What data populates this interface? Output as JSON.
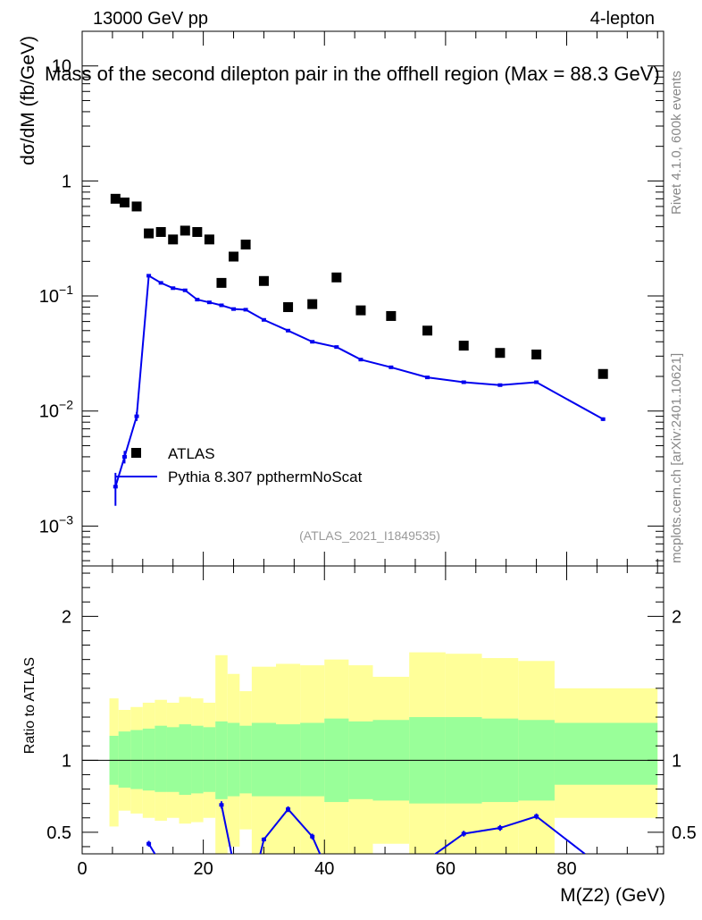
{
  "header": {
    "left": "13000 GeV pp",
    "right": "4-lepton",
    "side_top": "Rivet 4.1.0,  600k events",
    "side_bottom": "mcplots.cern.ch [arXiv:2401.10621]"
  },
  "chart_data": [
    {
      "type": "scatter",
      "title": "Mass of the second dilepton pair in the offhell region (Max = 88.3 GeV)",
      "ylabel": "dσ/dM (fb/GeV)",
      "xlabel": "",
      "yscale": "log",
      "xlim": [
        0,
        96
      ],
      "ylim": [
        0.00045,
        20
      ],
      "y_ticks": [
        {
          "value": 0.001,
          "base": "10",
          "exp": "−3"
        },
        {
          "value": 0.01,
          "base": "10",
          "exp": "−2"
        },
        {
          "value": 0.1,
          "base": "10",
          "exp": "−1"
        },
        {
          "value": 1,
          "base": "1",
          "exp": ""
        },
        {
          "value": 10,
          "base": "10",
          "exp": ""
        }
      ],
      "legend": {
        "position": "left",
        "entries": [
          "ATLAS",
          "Pythia 8.307 ppthermNoScat"
        ]
      },
      "watermark": "(ATLAS_2021_I1849535)",
      "series": [
        {
          "name": "ATLAS",
          "style": "markers",
          "color": "#000000",
          "x": [
            5.5,
            7,
            9,
            11,
            13,
            15,
            17,
            19,
            21,
            23,
            25,
            27,
            30,
            34,
            38,
            42,
            46,
            51,
            57,
            63,
            69,
            75,
            86
          ],
          "y": [
            0.7,
            0.65,
            0.6,
            0.35,
            0.36,
            0.31,
            0.37,
            0.36,
            0.31,
            0.13,
            0.22,
            0.28,
            0.135,
            0.08,
            0.085,
            0.145,
            0.075,
            0.067,
            0.05,
            0.037,
            0.032,
            0.031,
            0.021
          ]
        },
        {
          "name": "Pythia 8.307 ppthermNoScat",
          "style": "line",
          "color": "#0000ee",
          "x": [
            5.5,
            7,
            9,
            11,
            13,
            15,
            17,
            19,
            21,
            23,
            25,
            27,
            30,
            34,
            38,
            42,
            46,
            51,
            57,
            63,
            69,
            75,
            86
          ],
          "y": [
            0.0022,
            0.004,
            0.009,
            0.15,
            0.13,
            0.117,
            0.112,
            0.093,
            0.088,
            0.083,
            0.077,
            0.076,
            0.062,
            0.05,
            0.04,
            0.036,
            0.028,
            0.024,
            0.0196,
            0.0178,
            0.0168,
            0.0178,
            0.0085
          ],
          "yerr": [
            0.0007,
            0.0005,
            0.0008,
            0.004,
            0.003,
            0.002,
            0.002,
            0.002,
            0.002,
            0.002,
            0.002,
            0.002,
            0.0015,
            0.0012,
            0.001,
            0.0009,
            0.0007,
            0.0006,
            0.0005,
            0.0005,
            0.0005,
            0.0005,
            0.0003
          ]
        }
      ]
    },
    {
      "type": "area",
      "ylabel": "Ratio to ATLAS",
      "xlabel": "M(Z2) (GeV)",
      "xlim": [
        0,
        96
      ],
      "ylim": [
        0.35,
        2.35
      ],
      "x_ticks": [
        0,
        20,
        40,
        60,
        80
      ],
      "y_ticks": [
        0.5,
        1,
        2
      ],
      "reference_line": 1,
      "bin_edges": [
        4.5,
        6,
        8,
        10,
        12,
        14,
        16,
        18,
        20,
        22,
        24,
        26,
        28,
        32,
        36,
        40,
        44,
        48,
        54,
        60,
        66,
        72,
        78,
        95
      ],
      "band_green_upper": [
        1.17,
        1.2,
        1.21,
        1.22,
        1.24,
        1.23,
        1.25,
        1.24,
        1.23,
        1.27,
        1.26,
        1.24,
        1.26,
        1.25,
        1.26,
        1.29,
        1.27,
        1.28,
        1.3,
        1.3,
        1.29,
        1.28,
        1.26
      ],
      "band_green_lower": [
        0.83,
        0.81,
        0.8,
        0.79,
        0.78,
        0.78,
        0.76,
        0.77,
        0.78,
        0.73,
        0.75,
        0.77,
        0.75,
        0.75,
        0.75,
        0.71,
        0.73,
        0.72,
        0.7,
        0.7,
        0.71,
        0.72,
        0.83
      ],
      "band_yellow_upper": [
        1.43,
        1.35,
        1.37,
        1.4,
        1.42,
        1.4,
        1.44,
        1.43,
        1.4,
        1.73,
        1.6,
        1.48,
        1.65,
        1.67,
        1.66,
        1.7,
        1.66,
        1.58,
        1.75,
        1.74,
        1.71,
        1.69,
        1.5
      ],
      "band_yellow_lower": [
        0.54,
        0.65,
        0.63,
        0.6,
        0.58,
        0.6,
        0.56,
        0.57,
        0.6,
        0.27,
        0.4,
        0.52,
        0.35,
        0.33,
        0.34,
        0.3,
        0.34,
        0.42,
        0.25,
        0.26,
        0.29,
        0.31,
        0.6
      ],
      "band_green_color": "#99ff99",
      "band_yellow_color": "#ffff99",
      "series": [
        {
          "name": "Pythia 8.307 ppthermNoScat / ATLAS",
          "color": "#0000ee",
          "x": [
            11,
            13,
            23,
            25,
            29,
            30,
            34,
            38,
            40,
            56,
            63,
            69,
            75,
            83
          ],
          "y": [
            0.42,
            0.28,
            0.69,
            0.28,
            0.28,
            0.45,
            0.66,
            0.47,
            0.28,
            0.28,
            0.49,
            0.53,
            0.61,
            0.35
          ],
          "err": [
            0.02,
            0,
            0.025,
            0,
            0,
            0.015,
            0.02,
            0.02,
            0,
            0,
            0.02,
            0.02,
            0.02,
            0
          ]
        }
      ]
    }
  ]
}
